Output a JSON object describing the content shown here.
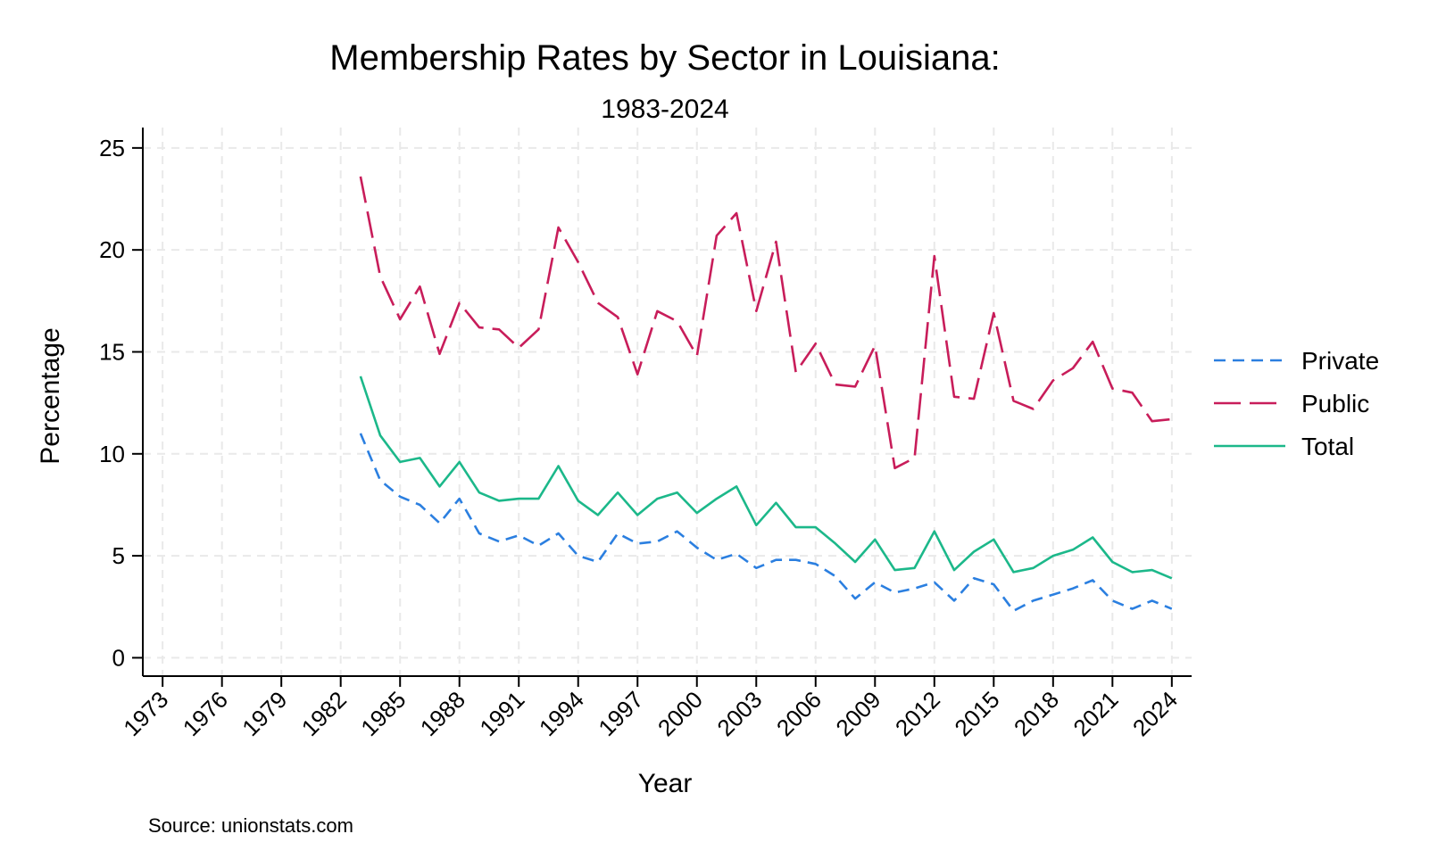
{
  "chart_data": {
    "type": "line",
    "title": "Membership Rates by Sector in Louisiana:",
    "subtitle": "1983-2024",
    "xlabel": "Year",
    "ylabel": "Percentage",
    "xlim": [
      1972,
      2025
    ],
    "ylim": [
      -0.9,
      26
    ],
    "xticks": [
      1973,
      1976,
      1979,
      1982,
      1985,
      1988,
      1991,
      1994,
      1997,
      2000,
      2003,
      2006,
      2009,
      2012,
      2015,
      2018,
      2021,
      2024
    ],
    "yticks": [
      0,
      5,
      10,
      15,
      20,
      25
    ],
    "grid": true,
    "legend_position": "right",
    "x": [
      1983,
      1984,
      1985,
      1986,
      1987,
      1988,
      1989,
      1990,
      1991,
      1992,
      1993,
      1994,
      1995,
      1996,
      1997,
      1998,
      1999,
      2000,
      2001,
      2002,
      2003,
      2004,
      2005,
      2006,
      2007,
      2008,
      2009,
      2010,
      2011,
      2012,
      2013,
      2014,
      2015,
      2016,
      2017,
      2018,
      2019,
      2020,
      2021,
      2022,
      2023,
      2024
    ],
    "series": [
      {
        "name": "Private",
        "color": "#2b7fe0",
        "dash": "dash",
        "values": [
          11.0,
          8.7,
          7.9,
          7.5,
          6.6,
          7.8,
          6.1,
          5.7,
          6.0,
          5.5,
          6.1,
          5.0,
          4.7,
          6.1,
          5.6,
          5.7,
          6.2,
          5.4,
          4.8,
          5.1,
          4.4,
          4.8,
          4.8,
          4.6,
          4.0,
          2.9,
          3.7,
          3.2,
          3.4,
          3.7,
          2.8,
          3.9,
          3.6,
          2.3,
          2.8,
          3.1,
          3.4,
          3.8,
          2.8,
          2.4,
          2.8,
          2.4
        ]
      },
      {
        "name": "Public",
        "color": "#c81d5a",
        "dash": "longdash",
        "values": [
          23.6,
          18.7,
          16.6,
          18.2,
          14.9,
          17.4,
          16.2,
          16.1,
          15.2,
          16.1,
          21.1,
          19.4,
          17.4,
          16.7,
          13.9,
          17.0,
          16.5,
          14.8,
          20.7,
          21.8,
          17.0,
          20.4,
          14.0,
          15.4,
          13.4,
          13.3,
          15.3,
          9.3,
          9.8,
          19.7,
          12.8,
          12.7,
          16.9,
          12.6,
          12.2,
          13.6,
          14.2,
          15.5,
          13.2,
          13.0,
          11.6,
          11.7
        ]
      },
      {
        "name": "Total",
        "color": "#1cb88a",
        "dash": "solid",
        "values": [
          13.8,
          10.9,
          9.6,
          9.8,
          8.4,
          9.6,
          8.1,
          7.7,
          7.8,
          7.8,
          9.4,
          7.7,
          7.0,
          8.1,
          7.0,
          7.8,
          8.1,
          7.1,
          7.8,
          8.4,
          6.5,
          7.6,
          6.4,
          6.4,
          5.6,
          4.7,
          5.8,
          4.3,
          4.4,
          6.2,
          4.3,
          5.2,
          5.8,
          4.2,
          4.4,
          5.0,
          5.3,
          5.9,
          4.7,
          4.2,
          4.3,
          3.9
        ]
      }
    ],
    "source_note": "Source: unionstats.com"
  }
}
